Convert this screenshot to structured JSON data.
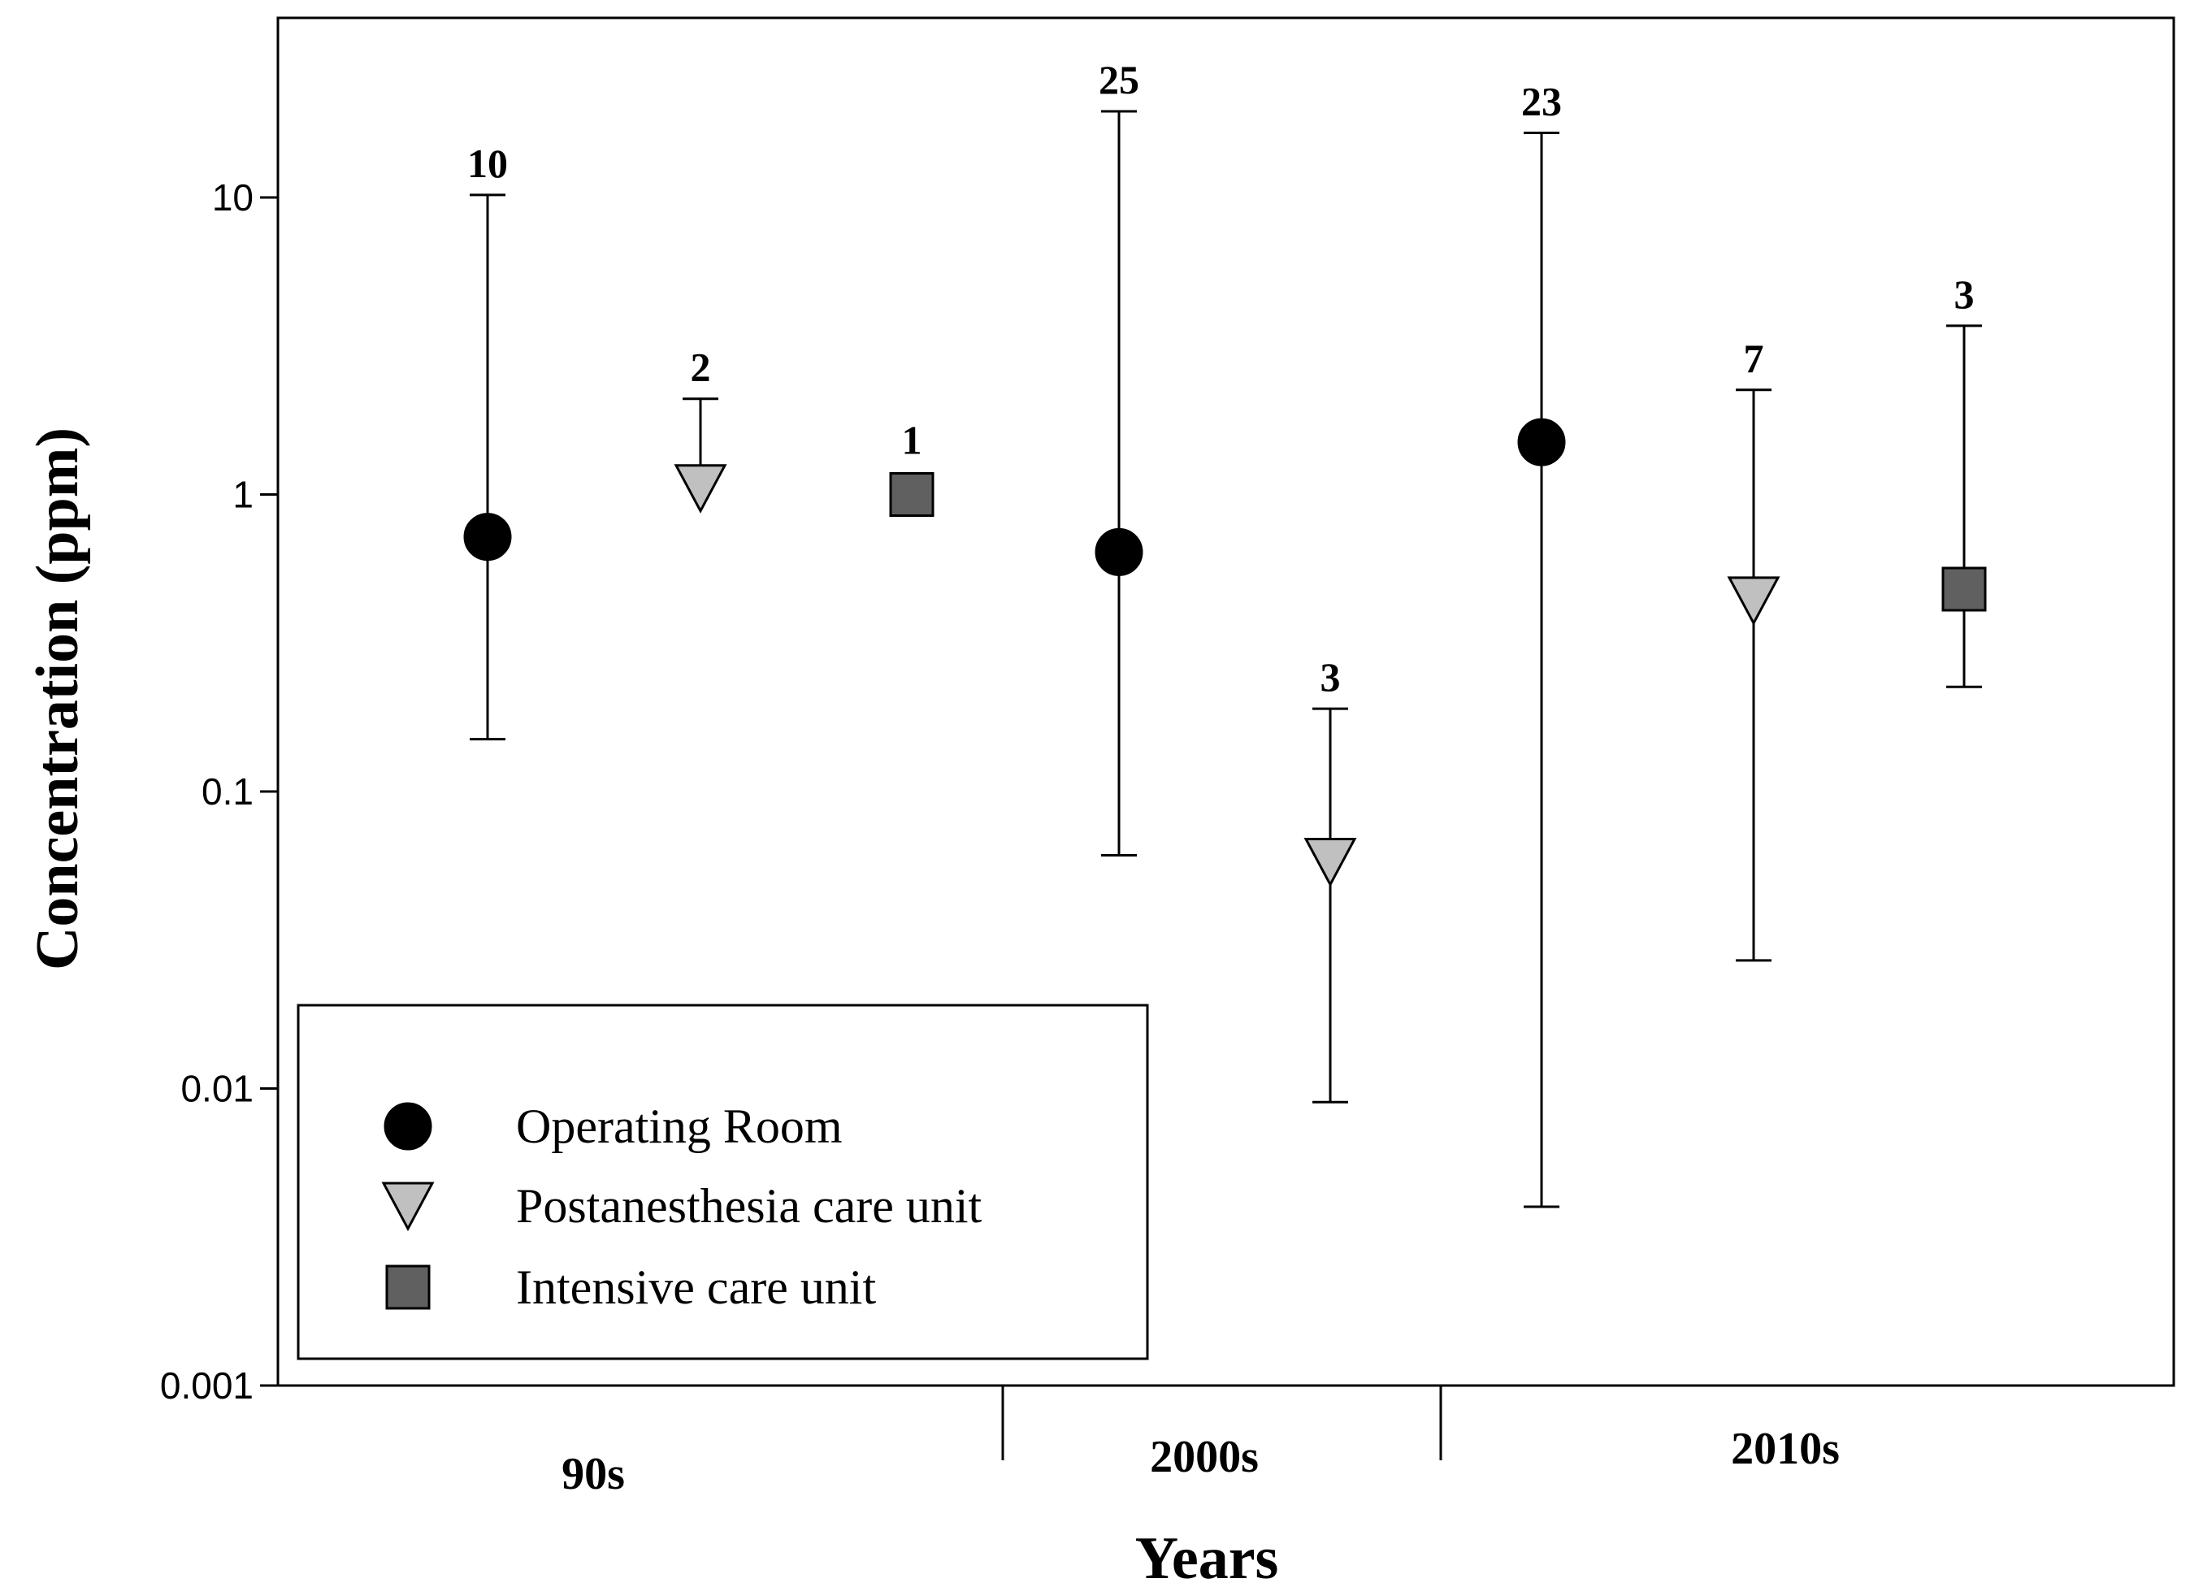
{
  "chart_data": {
    "type": "scatter",
    "title": "",
    "xlabel": "Years",
    "ylabel": "Concentration (ppm)",
    "yscale": "log",
    "ylim": [
      0.001,
      40
    ],
    "yticks": [
      {
        "value": 10,
        "label": "10"
      },
      {
        "value": 1,
        "label": "1"
      },
      {
        "value": 0.1,
        "label": "0.1"
      },
      {
        "value": 0.01,
        "label": "0.01"
      },
      {
        "value": 0.001,
        "label": "0.001"
      }
    ],
    "categories": [
      "90s",
      "2000s",
      "2010s"
    ],
    "grid": false,
    "legend_position": "bottom-left",
    "series": [
      {
        "name": "Operating Room",
        "marker": "circle",
        "color": "#000000",
        "points": [
          {
            "category": "90s",
            "value": 0.72,
            "low": 0.15,
            "high": 10.2,
            "n": "10"
          },
          {
            "category": "2000s",
            "value": 0.64,
            "low": 0.061,
            "high": 19.5,
            "n": "25"
          },
          {
            "category": "2010s",
            "value": 1.5,
            "low": 0.004,
            "high": 16.5,
            "n": "23"
          }
        ]
      },
      {
        "name": "Postanesthesia care unit",
        "marker": "triangle-down",
        "color": "#c0c0c0",
        "points": [
          {
            "category": "90s",
            "value": 1.05,
            "low": 1.05,
            "high": 2.1,
            "n": "2"
          },
          {
            "category": "2000s",
            "value": 0.058,
            "low": 0.009,
            "high": 0.19,
            "n": "3"
          },
          {
            "category": "2010s",
            "value": 0.44,
            "low": 0.027,
            "high": 2.25,
            "n": "7"
          }
        ]
      },
      {
        "name": "Intensive care unit",
        "marker": "square",
        "color": "#606060",
        "points": [
          {
            "category": "90s",
            "value": 1.0,
            "low": 1.0,
            "high": 1.0,
            "n": "1"
          },
          {
            "category": "2010s",
            "value": 0.48,
            "low": 0.225,
            "high": 3.7,
            "n": "3"
          }
        ]
      }
    ]
  }
}
